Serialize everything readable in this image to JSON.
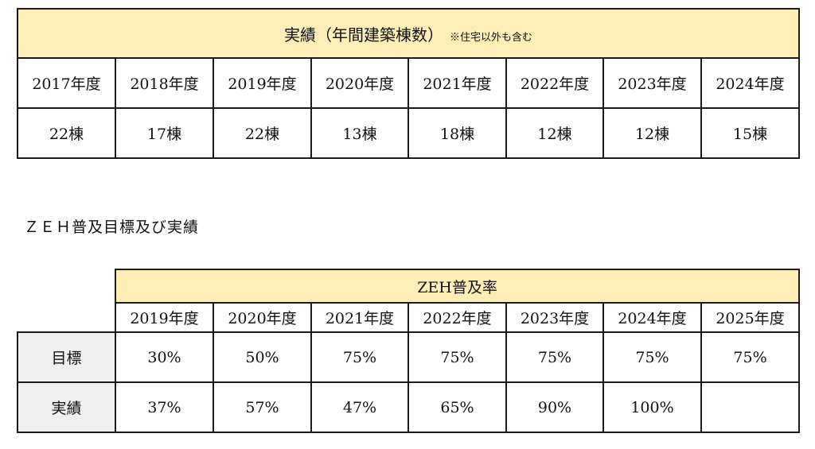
{
  "results_table": {
    "title": "実績（年間建築棟数）",
    "note": "※住宅以外も含む",
    "years": [
      "2017年度",
      "2018年度",
      "2019年度",
      "2020年度",
      "2021年度",
      "2022年度",
      "2023年度",
      "2024年度"
    ],
    "counts": [
      "22棟",
      "17棟",
      "22棟",
      "13棟",
      "18棟",
      "12棟",
      "12棟",
      "15棟"
    ]
  },
  "zeh_section": {
    "heading": "ＺＥＨ普及目標及び実績"
  },
  "zeh_table": {
    "title": "ZEH普及率",
    "years": [
      "2019年度",
      "2020年度",
      "2021年度",
      "2022年度",
      "2023年度",
      "2024年度",
      "2025年度"
    ],
    "rows": [
      {
        "label": "目標",
        "values": [
          "30%",
          "50%",
          "75%",
          "75%",
          "75%",
          "75%",
          "75%"
        ]
      },
      {
        "label": "実績",
        "values": [
          "37%",
          "57%",
          "47%",
          "65%",
          "90%",
          "100%",
          ""
        ]
      }
    ]
  },
  "colors": {
    "header_bg": "#fdeeb8",
    "row_label_bg": "#efefef",
    "border": "#1a1a1a"
  }
}
